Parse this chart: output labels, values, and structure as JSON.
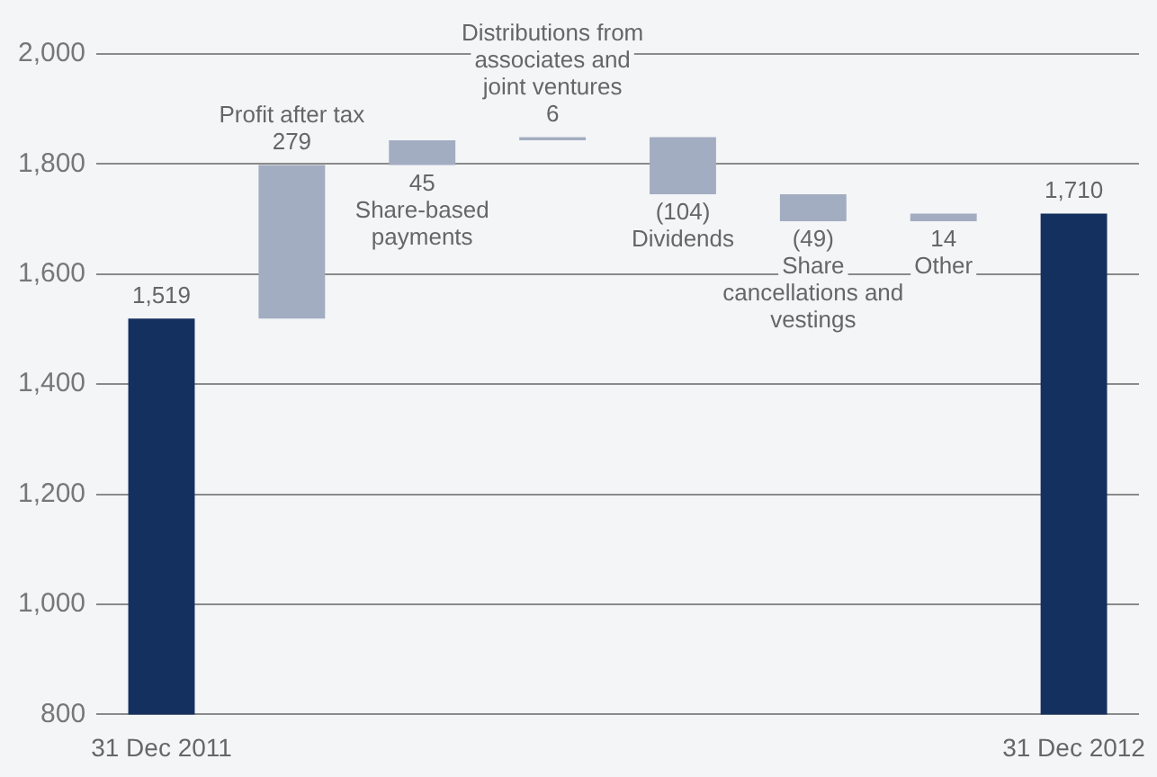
{
  "chart_data": {
    "type": "bar",
    "categories": [
      "31 Dec 2011",
      "Profit after tax",
      "Share-based payments",
      "Distributions from associates and joint ventures",
      "Dividends",
      "Share cancellations and vestings",
      "Other",
      "31 Dec 2012"
    ],
    "values": [
      1519,
      279,
      45,
      6,
      -104,
      -49,
      14,
      1710
    ],
    "base": [
      null,
      1519,
      1798,
      1843,
      1849,
      1745,
      1696,
      null
    ],
    "colors": [
      "#14305f",
      "#a3adc2",
      "#a3adc2",
      "#a3adc2",
      "#a3adc2",
      "#a3adc2",
      "#a3adc2",
      "#14305f"
    ],
    "value_labels": [
      "1,519",
      "279",
      "45",
      "6",
      "(104)",
      "(49)",
      "14",
      "1,710"
    ],
    "ylim": [
      800,
      2000
    ],
    "yticks": [
      800,
      {
        "value": 1000,
        "label": "1,000"
      },
      {
        "value": 1200,
        "label": "1,200"
      },
      {
        "value": 1400,
        "label": "1,400"
      },
      {
        "value": 1600,
        "label": "1,600"
      },
      {
        "value": 1800,
        "label": "1,800"
      },
      {
        "value": 2000,
        "label": "2,000"
      }
    ],
    "grid": "y",
    "legend": false
  }
}
